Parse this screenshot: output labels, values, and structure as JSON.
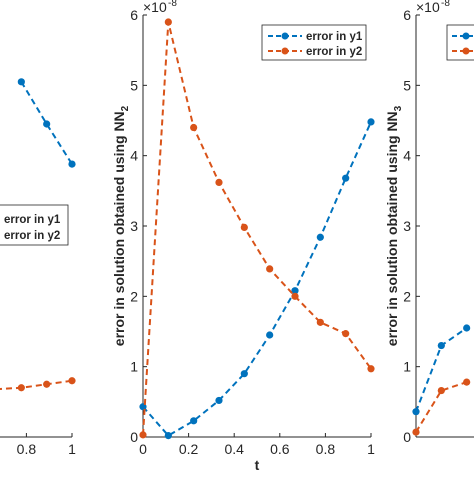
{
  "chart_data": [
    {
      "type": "line",
      "panel": "left (partially visible)",
      "x_ticks": [
        "0.8",
        "1"
      ],
      "x_range_visible": [
        0.73,
        1
      ],
      "series": [
        {
          "name": "error in y1",
          "color": "#0072BD",
          "x": [
            0.7778,
            0.8889,
            1.0
          ],
          "y": [
            5.05,
            4.45,
            3.88
          ]
        },
        {
          "name": "error in y2",
          "color": "#D95319",
          "x": [
            0.6667,
            0.7778,
            0.8889,
            1.0
          ],
          "y": [
            0.68,
            0.7,
            0.75,
            0.8
          ]
        }
      ],
      "ylim": [
        0,
        6
      ],
      "legend": {
        "placement": "middle-right",
        "entries": [
          "error in y1",
          "error in y2"
        ]
      }
    },
    {
      "type": "line",
      "panel": "middle",
      "xlabel": "t",
      "ylabel": "error in solution obtained using NN",
      "ylabel_subscript": "2",
      "exponent_base": "×10",
      "exponent_power": "-8",
      "x_ticks": [
        "0",
        "0.2",
        "0.4",
        "0.6",
        "0.8",
        "1"
      ],
      "y_ticks": [
        "0",
        "1",
        "2",
        "3",
        "4",
        "5",
        "6"
      ],
      "xlim": [
        0,
        1
      ],
      "ylim": [
        0,
        6
      ],
      "series": [
        {
          "name": "error in y1",
          "color": "#0072BD",
          "x": [
            0,
            0.1111,
            0.2222,
            0.3333,
            0.4444,
            0.5556,
            0.6667,
            0.7778,
            0.8889,
            1.0
          ],
          "y": [
            0.43,
            0.02,
            0.23,
            0.52,
            0.9,
            1.45,
            2.08,
            2.84,
            3.68,
            4.48
          ]
        },
        {
          "name": "error in y2",
          "color": "#D95319",
          "x": [
            0,
            0.1111,
            0.2222,
            0.3333,
            0.4444,
            0.5556,
            0.6667,
            0.7778,
            0.8889,
            1.0
          ],
          "y": [
            0.03,
            5.9,
            4.4,
            3.62,
            2.98,
            2.39,
            2.0,
            1.63,
            1.47,
            0.97
          ]
        }
      ],
      "legend": {
        "placement": "top-right",
        "entries": [
          "error in y1",
          "error in y2"
        ]
      }
    },
    {
      "type": "line",
      "panel": "right (partially visible)",
      "ylabel": "error in solution obtained using NN",
      "ylabel_subscript": "3",
      "exponent_base": "×10",
      "exponent_power": "-8",
      "y_ticks": [
        "0",
        "1",
        "2",
        "3",
        "4",
        "5",
        "6"
      ],
      "ylim": [
        0,
        6
      ],
      "series": [
        {
          "name": "error in y1",
          "color": "#0072BD",
          "x": [
            0,
            0.1111,
            0.2222
          ],
          "y": [
            0.36,
            1.3,
            1.55
          ]
        },
        {
          "name": "error in y2",
          "color": "#D95319",
          "x": [
            0,
            0.1111,
            0.2222
          ],
          "y": [
            0.07,
            0.66,
            0.78
          ]
        }
      ],
      "legend": {
        "placement": "top-right"
      }
    }
  ]
}
